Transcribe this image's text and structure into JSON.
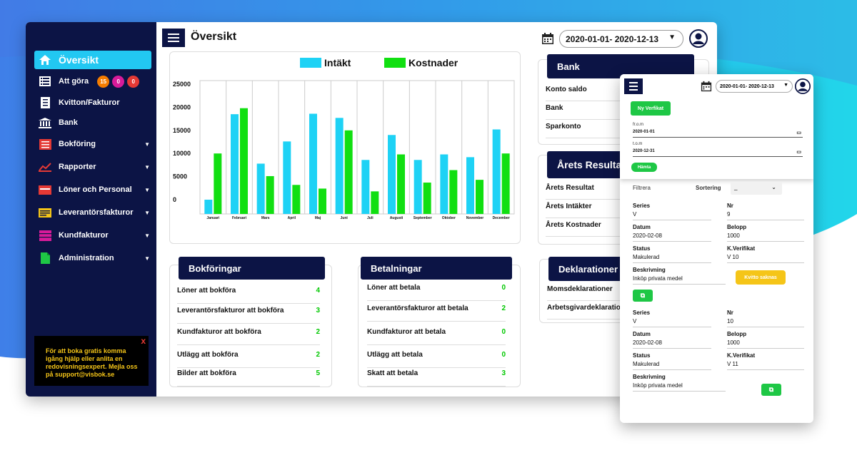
{
  "colors": {
    "navy": "#0c1445",
    "accent": "#22c8f2",
    "income": "#1ed2f5",
    "cost": "#11df11",
    "green": "#00c800",
    "yellow": "#f5c518"
  },
  "sidebar": {
    "items": [
      {
        "label": "Översikt",
        "icon": "home-icon",
        "active": true
      },
      {
        "label": "Att göra",
        "icon": "list-icon",
        "badges": [
          {
            "text": "15",
            "color": "#f57c00"
          },
          {
            "text": "0",
            "color": "#d81b9a"
          },
          {
            "text": "0",
            "color": "#e53935"
          }
        ]
      },
      {
        "label": "Kvitton/Fakturor",
        "icon": "receipt-icon"
      },
      {
        "label": "Bank",
        "icon": "bank-icon"
      },
      {
        "label": "Bokföring",
        "icon": "book-icon",
        "expandable": true
      },
      {
        "label": "Rapporter",
        "icon": "chart-icon",
        "expandable": true
      },
      {
        "label": "Löner och Personal",
        "icon": "payroll-icon",
        "expandable": true
      },
      {
        "label": "Leverantörsfakturor",
        "icon": "supplier-invoice-icon",
        "expandable": true
      },
      {
        "label": "Kundfakturor",
        "icon": "customer-invoice-icon",
        "expandable": true
      },
      {
        "label": "Administration",
        "icon": "document-icon",
        "expandable": true
      }
    ],
    "promo": "För att boka gratis komma igång hjälp eller anlita en redovisningsexpert. Mejla oss på support@visbok.se",
    "promo_close": "x"
  },
  "header": {
    "title": "Översikt",
    "date_range": "2020-01-01-  2020-12-13"
  },
  "chart_data": {
    "type": "bar",
    "categories": [
      "Januari",
      "Februari",
      "Mars",
      "April",
      "Maj",
      "Juni",
      "Juli",
      "Augusti",
      "September",
      "Oktober",
      "November",
      "December"
    ],
    "series": [
      {
        "name": "Intäkt",
        "color": "#1ed2f5",
        "values": [
          0,
          18500,
          7800,
          12600,
          18600,
          17700,
          8600,
          14000,
          8600,
          9800,
          9200,
          15200
        ]
      },
      {
        "name": "Kostnader",
        "color": "#11df11",
        "values": [
          10000,
          19800,
          5100,
          3200,
          2400,
          15000,
          1800,
          9800,
          3700,
          6400,
          4300,
          10000
        ]
      }
    ],
    "y_ticks": [
      25000,
      20000,
      15000,
      10000,
      5000,
      0
    ],
    "ylim": [
      0,
      25000
    ],
    "legend_position": "top-center",
    "grid": true
  },
  "bokforingar": {
    "title": "Bokföringar",
    "rows": [
      {
        "label": "Löner att bokföra",
        "value": "4"
      },
      {
        "label": "Leverantörsfakturor att bokföra",
        "value": "3"
      },
      {
        "label": "Kundfakturor att bokföra",
        "value": "2"
      },
      {
        "label": "Utlägg att bokföra",
        "value": "2"
      },
      {
        "label": "Bilder att bokföra",
        "value": "5"
      }
    ]
  },
  "betalningar": {
    "title": "Betalningar",
    "rows": [
      {
        "label": "Löner att betala",
        "value": "0"
      },
      {
        "label": "Leverantörsfakturor att betala",
        "value": "2"
      },
      {
        "label": "Kundfakturor att betala",
        "value": "0"
      },
      {
        "label": "Utlägg att betala",
        "value": "0"
      },
      {
        "label": "Skatt att betala",
        "value": "3"
      }
    ]
  },
  "bank": {
    "title": "Bank",
    "rows": [
      "Konto saldo",
      "Bank",
      "Sparkonto"
    ]
  },
  "resultat": {
    "title": "Årets Resultat",
    "rows": [
      "Årets Resultat",
      "Årets Intäkter",
      "Årets Kostnader"
    ]
  },
  "deklarationer": {
    "title": "Deklarationer",
    "rows": [
      "Momsdeklarationer",
      "Arbetsgivardeklarationer"
    ]
  },
  "mobile": {
    "date_range": "2020-01-01-  2020-12-13",
    "new_button": "Ny Verfikat",
    "from_label": "fr.o.m",
    "from_value": "2020-01-01",
    "to_label": "t.o.m",
    "to_value": "2020-12-31",
    "fetch_button": "Hämta",
    "filter_label": "Filtrera",
    "sort_label": "Sortering",
    "sort_value": "_",
    "entries": [
      {
        "series_label": "Series",
        "series": "V",
        "nr_label": "Nr",
        "nr": "9",
        "date_label": "Datum",
        "date": "2020-02-08",
        "amount_label": "Belopp",
        "amount": "1000",
        "status_label": "Status",
        "status": "Makulerad",
        "kv_label": "K.Verifikat",
        "kv": "V 10",
        "desc_label": "Beskrivning",
        "desc": "Inköp privata medel",
        "badge": "Kvitto saknas"
      },
      {
        "series_label": "Series",
        "series": "V",
        "nr_label": "Nr",
        "nr": "10",
        "date_label": "Datum",
        "date": "2020-02-08",
        "amount_label": "Belopp",
        "amount": "1000",
        "status_label": "Status",
        "status": "Makulerad",
        "kv_label": "K.Verifikat",
        "kv": "V 11",
        "desc_label": "Beskrivning",
        "desc": "Inköp privata medel"
      }
    ]
  }
}
